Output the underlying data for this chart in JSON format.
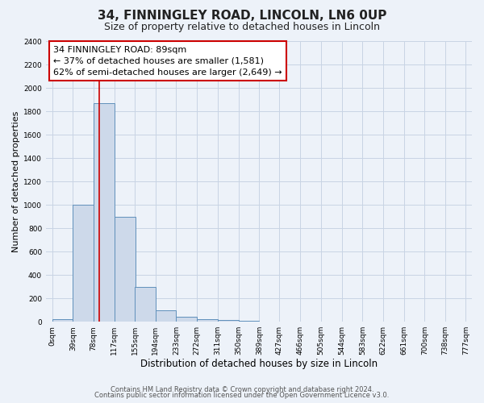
{
  "title": "34, FINNINGLEY ROAD, LINCOLN, LN6 0UP",
  "subtitle": "Size of property relative to detached houses in Lincoln",
  "xlabel": "Distribution of detached houses by size in Lincoln",
  "ylabel": "Number of detached properties",
  "bar_left_edges": [
    0,
    39,
    78,
    117,
    155,
    194,
    233,
    272,
    311,
    350,
    389,
    427,
    466,
    505,
    544,
    583,
    622,
    661,
    700,
    738
  ],
  "bar_heights": [
    20,
    1000,
    1870,
    900,
    300,
    100,
    45,
    20,
    15,
    5,
    0,
    0,
    0,
    0,
    0,
    0,
    0,
    0,
    0,
    0
  ],
  "bin_width": 39,
  "bar_color": "#cdd9ea",
  "bar_edge_color": "#6090bb",
  "grid_color": "#c8d4e4",
  "background_color": "#edf2f9",
  "vline_x": 89,
  "vline_color": "#cc0000",
  "ylim": [
    0,
    2400
  ],
  "yticks": [
    0,
    200,
    400,
    600,
    800,
    1000,
    1200,
    1400,
    1600,
    1800,
    2000,
    2200,
    2400
  ],
  "xtick_labels": [
    "0sqm",
    "39sqm",
    "78sqm",
    "117sqm",
    "155sqm",
    "194sqm",
    "233sqm",
    "272sqm",
    "311sqm",
    "350sqm",
    "389sqm",
    "427sqm",
    "466sqm",
    "505sqm",
    "544sqm",
    "583sqm",
    "622sqm",
    "661sqm",
    "700sqm",
    "738sqm",
    "777sqm"
  ],
  "annotation_title": "34 FINNINGLEY ROAD: 89sqm",
  "annotation_line1": "← 37% of detached houses are smaller (1,581)",
  "annotation_line2": "62% of semi-detached houses are larger (2,649) →",
  "annotation_box_color": "#ffffff",
  "annotation_box_edge": "#cc0000",
  "footer_line1": "Contains HM Land Registry data © Crown copyright and database right 2024.",
  "footer_line2": "Contains public sector information licensed under the Open Government Licence v3.0.",
  "title_fontsize": 11,
  "subtitle_fontsize": 9,
  "xlabel_fontsize": 8.5,
  "ylabel_fontsize": 8,
  "tick_fontsize": 6.5,
  "annotation_fontsize": 8,
  "footer_fontsize": 6
}
